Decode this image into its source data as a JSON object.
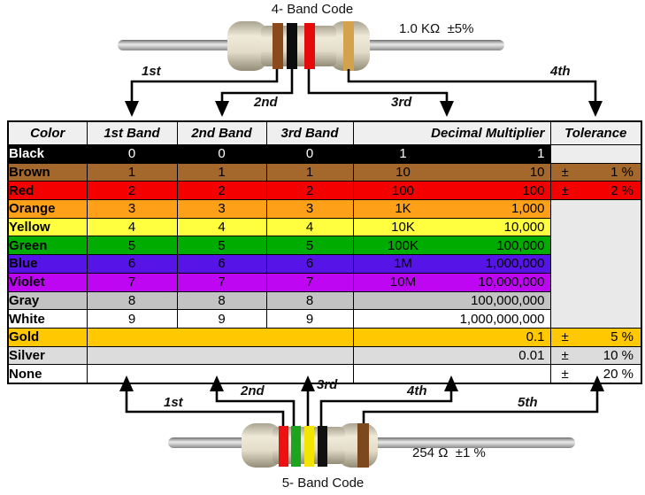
{
  "colors": {
    "arrow": "#000000",
    "header_bg": "#efefef",
    "tol_empty_black_bg": "#ededed",
    "tol_merged_bg": "#e9e9e9"
  },
  "top_resistor": {
    "title": "4- Band Code",
    "value": "1.0 KΩ  ±5%",
    "arrow_labels": [
      "1st",
      "2nd",
      "3rd",
      "4th"
    ],
    "bands": [
      {
        "name": "brown",
        "color": "#8a4a1c"
      },
      {
        "name": "black",
        "color": "#0d0d0d"
      },
      {
        "name": "red",
        "color": "#e30b0b"
      },
      {
        "name": "gold",
        "color": "#d2a24c"
      }
    ]
  },
  "bottom_resistor": {
    "title": "5- Band Code",
    "value": "254 Ω  ±1 %",
    "arrow_labels": [
      "1st",
      "2nd",
      "3rd",
      "4th",
      "5th"
    ],
    "bands": [
      {
        "name": "red",
        "color": "#ee1111"
      },
      {
        "name": "green",
        "color": "#1ca41c"
      },
      {
        "name": "yellow",
        "color": "#f2e500"
      },
      {
        "name": "black",
        "color": "#111111"
      },
      {
        "name": "brown",
        "color": "#7c481e"
      }
    ]
  },
  "table": {
    "headers": [
      "Color",
      "1st Band",
      "2nd Band",
      "3rd Band",
      "Decimal Multiplier",
      "Tolerance"
    ],
    "rows": [
      {
        "color": "Black",
        "bg": "#000000",
        "fg": "#ffffff",
        "bands": [
          "0",
          "0",
          "0"
        ],
        "mult_short": "1",
        "mult_full": "1",
        "tol": {
          "type": "empty"
        }
      },
      {
        "color": "Brown",
        "bg": "#a5682c",
        "fg": "#000000",
        "bands": [
          "1",
          "1",
          "1"
        ],
        "mult_short": "10",
        "mult_full": "10",
        "tol": {
          "type": "value",
          "sign": "±",
          "text": "1 %"
        }
      },
      {
        "color": "Red",
        "bg": "#f50000",
        "fg": "#000000",
        "bands": [
          "2",
          "2",
          "2"
        ],
        "mult_short": "100",
        "mult_full": "100",
        "tol": {
          "type": "value",
          "sign": "±",
          "text": "2 %"
        }
      },
      {
        "color": "Orange",
        "bg": "#ffa019",
        "fg": "#000000",
        "bands": [
          "3",
          "3",
          "3"
        ],
        "mult_short": "1K",
        "mult_full": "1,000",
        "tol": {
          "type": "merged",
          "span": 7
        }
      },
      {
        "color": "Yellow",
        "bg": "#ffff40",
        "fg": "#000000",
        "bands": [
          "4",
          "4",
          "4"
        ],
        "mult_short": "10K",
        "mult_full": "10,000",
        "tol": {
          "type": "none"
        }
      },
      {
        "color": "Green",
        "bg": "#00ac00",
        "fg": "#000000",
        "bands": [
          "5",
          "5",
          "5"
        ],
        "mult_short": "100K",
        "mult_full": "100,000",
        "tol": {
          "type": "none"
        }
      },
      {
        "color": "Blue",
        "bg": "#5714e6",
        "fg": "#000000",
        "bands": [
          "6",
          "6",
          "6"
        ],
        "mult_short": "1M",
        "mult_full": "1,000,000",
        "tol": {
          "type": "none"
        }
      },
      {
        "color": "Violet",
        "bg": "#be06f3",
        "fg": "#000000",
        "bands": [
          "7",
          "7",
          "7"
        ],
        "mult_short": "10M",
        "mult_full": "10,000,000",
        "tol": {
          "type": "none"
        }
      },
      {
        "color": "Gray",
        "bg": "#c3c3c3",
        "fg": "#000000",
        "bands": [
          "8",
          "8",
          "8"
        ],
        "mult_short": "",
        "mult_full": "100,000,000",
        "tol": {
          "type": "none"
        }
      },
      {
        "color": "White",
        "bg": "#ffffff",
        "fg": "#000000",
        "bands": [
          "9",
          "9",
          "9"
        ],
        "mult_short": "",
        "mult_full": "1,000,000,000",
        "tol": {
          "type": "none"
        }
      },
      {
        "color": "Gold",
        "bg": "#ffc800",
        "fg": "#000000",
        "bands_merged": true,
        "mult_short": "",
        "mult_full": "0.1",
        "tol": {
          "type": "value",
          "sign": "±",
          "text": "5 %"
        }
      },
      {
        "color": "Silver",
        "bg": "#dcdcdc",
        "fg": "#000000",
        "bands_merged": true,
        "mult_short": "",
        "mult_full": "0.01",
        "tol": {
          "type": "value",
          "sign": "±",
          "text": "10 %"
        }
      },
      {
        "color": "None",
        "bg": "#ffffff",
        "fg": "#000000",
        "bands_merged": true,
        "mult_short": "",
        "mult_full": "",
        "tol": {
          "type": "value",
          "sign": "±",
          "text": "20 %"
        }
      }
    ]
  }
}
